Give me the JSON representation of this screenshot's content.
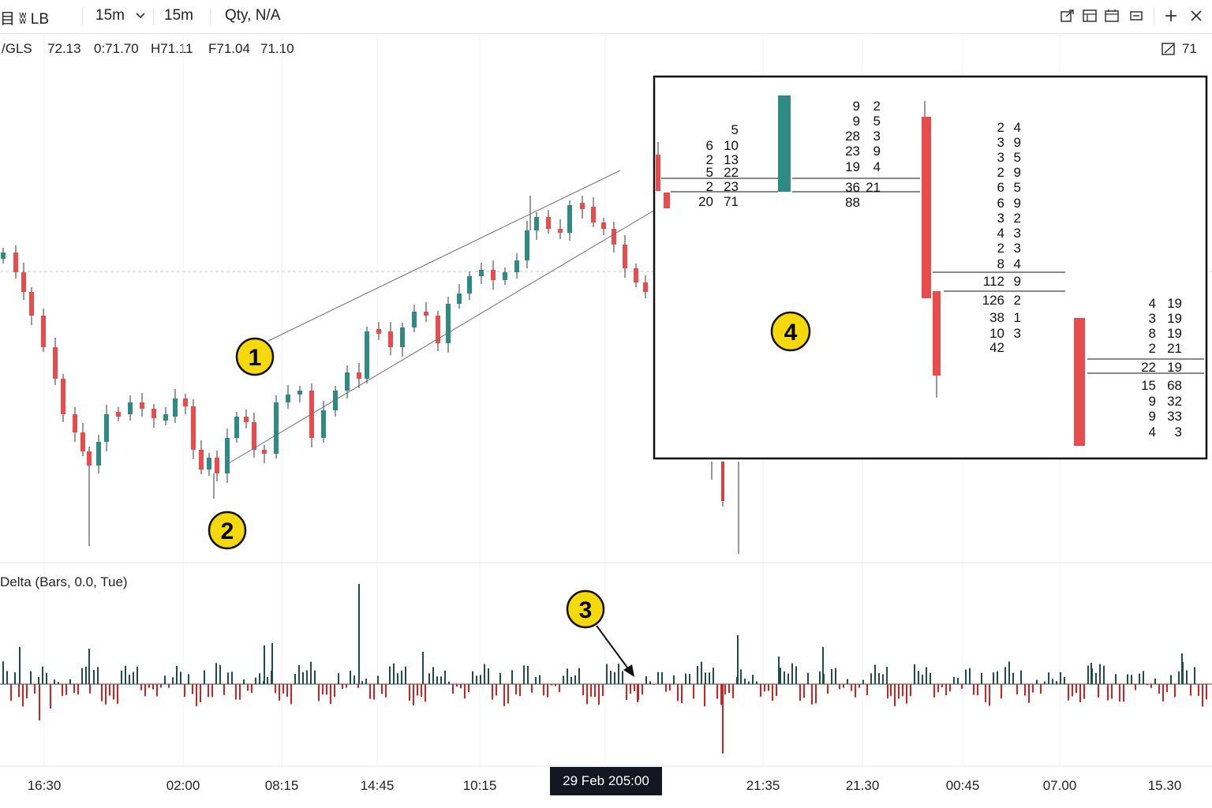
{
  "toolbar": {
    "symbol": "目 ʬ LB",
    "interval": "15m",
    "interval_alt": "15m",
    "qty": "Qty, N/A"
  },
  "ohlc": {
    "prefix": "/GLS",
    "last": "72.13",
    "open": "0:71.70",
    "high": "H71.11",
    "f": "F71.04",
    "close": "71.10",
    "right_value": "71"
  },
  "indicator": {
    "label": "Delta (Bars, 0.0, Tue)"
  },
  "time_axis": {
    "labels": [
      "16:30",
      "02:00",
      "08:15",
      "14:45",
      "10:15",
      "21:35",
      "21.30",
      "00:45",
      "07.00",
      "15.30"
    ],
    "crosshair": "29 Feb 205:00"
  },
  "badges": [
    "1",
    "2",
    "3",
    "4"
  ],
  "footprint": {
    "col1": [
      [
        "",
        "5"
      ],
      [
        "6",
        "10"
      ],
      [
        "2",
        "13"
      ],
      [
        "5",
        "22"
      ],
      [
        "2",
        "23"
      ],
      [
        "20",
        "71"
      ]
    ],
    "col2": [
      [
        "9",
        "2"
      ],
      [
        "9",
        "5"
      ],
      [
        "28",
        "3"
      ],
      [
        "23",
        "9"
      ],
      [
        "19",
        "4"
      ],
      [
        "36",
        "21"
      ],
      [
        "88",
        ""
      ]
    ],
    "col3": [
      [
        "2",
        "4"
      ],
      [
        "3",
        "9"
      ],
      [
        "3",
        "5"
      ],
      [
        "2",
        "9"
      ],
      [
        "6",
        "5"
      ],
      [
        "6",
        "9"
      ],
      [
        "3",
        "2"
      ],
      [
        "4",
        "3"
      ],
      [
        "2",
        "3"
      ],
      [
        "8",
        "4"
      ],
      [
        "112",
        "9"
      ],
      [
        "126",
        "2"
      ],
      [
        "38",
        "1"
      ],
      [
        "10",
        "3"
      ],
      [
        "42",
        ""
      ]
    ],
    "col4": [
      [
        "4",
        "19"
      ],
      [
        "3",
        "19"
      ],
      [
        "8",
        "19"
      ],
      [
        "2",
        "21"
      ],
      [
        "22",
        "19"
      ],
      [
        "15",
        "68"
      ],
      [
        "9",
        "32"
      ],
      [
        "9",
        "33"
      ],
      [
        "4",
        "3"
      ]
    ]
  },
  "colors": {
    "up": "#2e8b84",
    "down": "#e84c4c",
    "badge": "#f5d90a",
    "delta_up": "#1e4d45",
    "delta_down": "#d22020"
  }
}
